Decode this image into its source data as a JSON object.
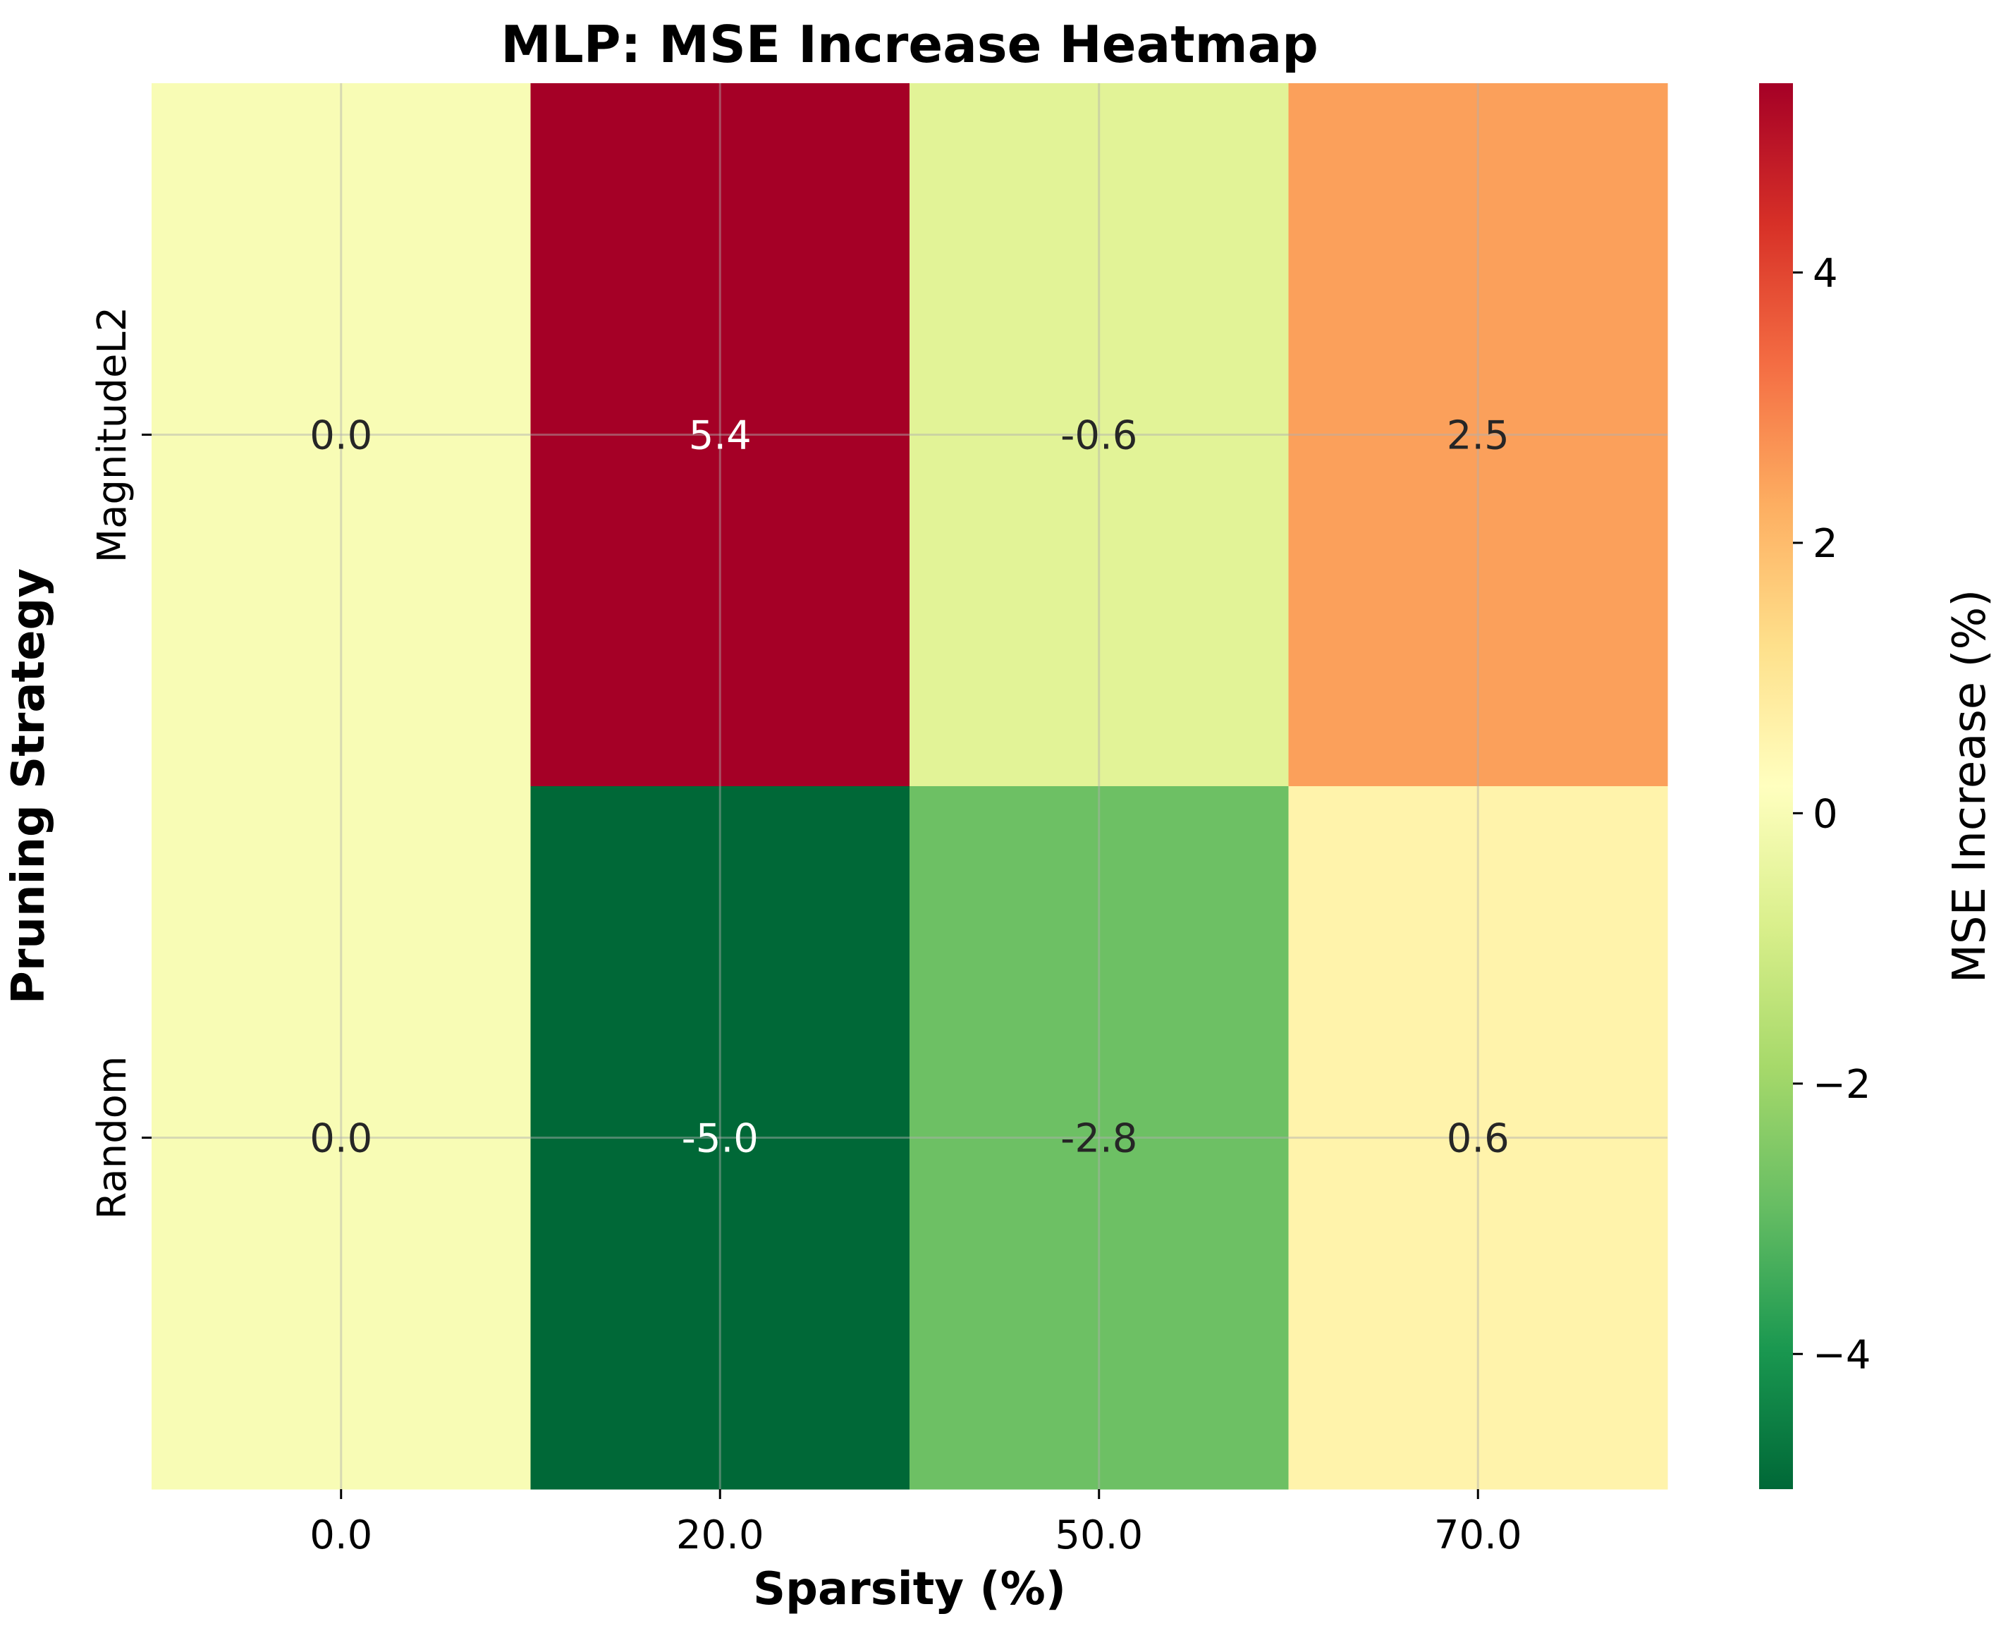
{
  "chart_data": {
    "type": "heatmap",
    "title": "MLP: MSE Increase Heatmap",
    "xlabel": "Sparsity (%)",
    "ylabel": "Pruning Strategy",
    "x_categories": [
      "0.0",
      "20.0",
      "50.0",
      "70.0"
    ],
    "y_categories": [
      "MagnitudeL2",
      "Random"
    ],
    "values": [
      [
        0.0,
        5.4,
        -0.6,
        2.5
      ],
      [
        0.0,
        -5.0,
        -2.8,
        0.6
      ]
    ],
    "annotations": [
      [
        "0.0",
        "5.4",
        "-0.6",
        "2.5"
      ],
      [
        "0.0",
        "-5.0",
        "-2.8",
        "0.6"
      ]
    ],
    "colorbar": {
      "label": "MSE Increase (%)",
      "colormap": "RdYlGn_r",
      "vmin": -5.0,
      "vmax": 5.4,
      "ticks": [
        -4,
        -2,
        0,
        2,
        4
      ],
      "tick_labels": [
        "−4",
        "−2",
        "0",
        "2",
        "4"
      ]
    },
    "grid": true
  }
}
